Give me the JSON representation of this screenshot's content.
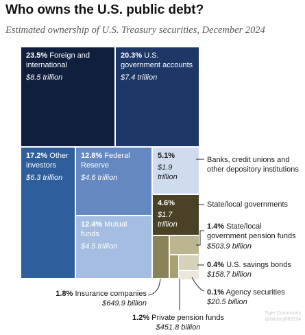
{
  "title": "Who owns the U.S. public debt?",
  "subtitle": "Estimated ownership of U.S. Treasury securities, December 2024",
  "watermark": {
    "line1": "Tiger Community",
    "line2": "@Mickey082024"
  },
  "chart_data": {
    "type": "treemap",
    "title": "Who owns the U.S. public debt?",
    "subtitle": "Estimated ownership of U.S. Treasury securities, December 2024",
    "segments": [
      {
        "pct": "23.5%",
        "label": "Foreign and international",
        "value": "$8.5 trillion",
        "share": 23.5,
        "color": "#0f1f3d"
      },
      {
        "pct": "20.3%",
        "label": "U.S. government accounts",
        "value": "$7.4 trillion",
        "share": 20.3,
        "color": "#1d3766"
      },
      {
        "pct": "17.2%",
        "label": "Other investors",
        "value": "$6.3 trillion",
        "share": 17.2,
        "color": "#2e5f9c"
      },
      {
        "pct": "12.8%",
        "label": "Federal Reserve",
        "value": "$4.6 trillion",
        "share": 12.8,
        "color": "#6489c2"
      },
      {
        "pct": "12.4%",
        "label": "Mutual funds",
        "value": "$4.5 trillion",
        "share": 12.4,
        "color": "#a4bde0"
      },
      {
        "pct": "5.1%",
        "label": "Banks, credit unions and other depository institutions",
        "value": "$1.9 trillion",
        "share": 5.1,
        "color": "#cfdcee"
      },
      {
        "pct": "4.6%",
        "label": "State/local governments",
        "value": "$1.7 trillion",
        "share": 4.6,
        "color": "#4a4126"
      },
      {
        "pct": "1.8%",
        "label": "Insurance companies",
        "value": "$649.9 billion",
        "share": 1.8,
        "color": "#8a8358"
      },
      {
        "pct": "1.4%",
        "label": "State/local government pension funds",
        "value": "$503.9 billion",
        "share": 1.4,
        "color": "#bdb490"
      },
      {
        "pct": "1.2%",
        "label": "Private pension funds",
        "value": "$451.8 billion",
        "share": 1.2,
        "color": "#a89f75"
      },
      {
        "pct": "0.4%",
        "label": "U.S. savings bonds",
        "value": "$158.7 billion",
        "share": 0.4,
        "color": "#d6d1bb"
      },
      {
        "pct": "0.1%",
        "label": "Agency securities",
        "value": "$20.5 billion",
        "share": 0.1,
        "color": "#eae7dc"
      }
    ],
    "tile_labels": {
      "foreign": {
        "pct": "23.5%",
        "text": "Foreign and international",
        "value": "$8.5 trillion"
      },
      "govt": {
        "pct": "20.3%",
        "text": "U.S. government accounts",
        "value": "$7.4 trillion"
      },
      "other": {
        "pct": "17.2%",
        "text": "Other investors",
        "value": "$6.3 trillion"
      },
      "fed": {
        "pct": "12.8%",
        "text": "Federal Reserve",
        "value": "$4.6 trillion"
      },
      "mutual": {
        "pct": "12.4%",
        "text": "Mutual funds",
        "value": "$4.5 trillion"
      },
      "banks": {
        "pct": "5.1%",
        "value1": "$1.9",
        "value2": "trillion"
      },
      "state": {
        "pct": "4.6%",
        "value1": "$1.7",
        "value2": "trillion"
      }
    },
    "callouts": {
      "banks": "Banks, credit unions and other depository institutions",
      "state": "State/local governments",
      "state_pension": {
        "pct": "1.4%",
        "text1": "State/local",
        "text2": "government pension funds",
        "value": "$503.9 billion"
      },
      "savings": {
        "pct": "0.4%",
        "text": "U.S. savings bonds",
        "value": "$158.7 billion"
      },
      "agency": {
        "pct": "0.1%",
        "text": "Agency securities",
        "value": "$20.5 billion"
      },
      "insurance": {
        "pct": "1.8%",
        "text": "Insurance companies",
        "value": "$649.9 billion"
      },
      "private_pension": {
        "pct": "1.2%",
        "text": "Private pension funds",
        "value": "$451.8 billion"
      }
    }
  }
}
